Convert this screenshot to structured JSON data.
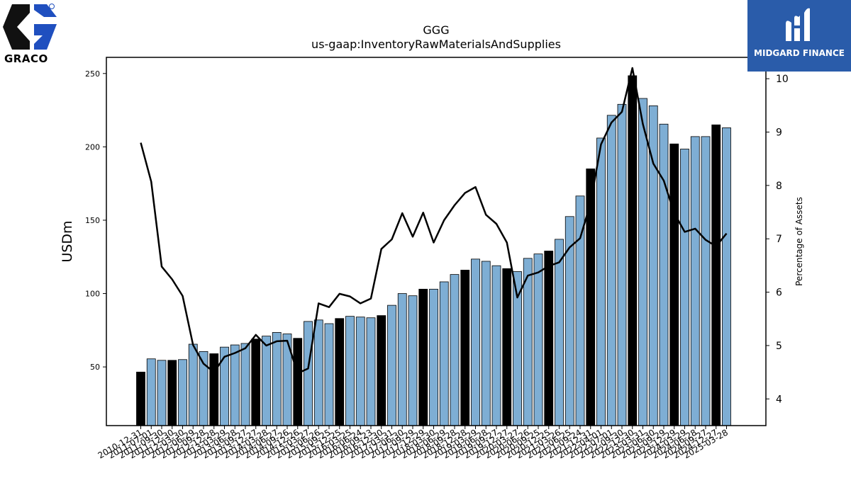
{
  "logos": {
    "left_text": "GRACO",
    "right_text": "MIDGARD FINANCE"
  },
  "chart_data": {
    "type": "bar",
    "title": "GGG",
    "subtitle": "us-gaap:InventoryRawMaterialsAndSupplies",
    "ylabel": "USDm",
    "y2label": "Percentage of Assets",
    "ylim": [
      10,
      261
    ],
    "y2lim": [
      3.5,
      10.4
    ],
    "yticks": [
      50,
      100,
      150,
      200,
      250
    ],
    "y2ticks": [
      4,
      5,
      6,
      7,
      8,
      9,
      10
    ],
    "bar_color": "#7eaed4",
    "highlight_color": "#000000",
    "line_color": "#000000",
    "categories": [
      "2010-12-31",
      "2011-07-01",
      "2011-09-30",
      "2011-12-30",
      "2012-03-30",
      "2012-06-29",
      "2012-09-28",
      "2012-12-28",
      "2013-03-29",
      "2013-06-28",
      "2013-09-27",
      "2013-12-27",
      "2014-03-28",
      "2014-06-27",
      "2014-09-26",
      "2014-12-26",
      "2015-03-27",
      "2015-06-26",
      "2015-09-25",
      "2015-12-25",
      "2016-03-25",
      "2016-06-24",
      "2016-09-23",
      "2016-12-30",
      "2017-03-31",
      "2017-06-30",
      "2017-09-29",
      "2017-12-29",
      "2018-03-30",
      "2018-06-29",
      "2018-09-28",
      "2018-12-28",
      "2019-03-29",
      "2019-06-28",
      "2019-09-27",
      "2019-12-27",
      "2020-03-27",
      "2020-06-26",
      "2020-09-25",
      "2020-12-25",
      "2021-03-26",
      "2021-06-25",
      "2021-09-24",
      "2021-12-31",
      "2022-04-01",
      "2022-07-01",
      "2022-09-30",
      "2022-12-30",
      "2023-03-31",
      "2023-06-30",
      "2023-09-29",
      "2023-12-29",
      "2024-03-29",
      "2024-06-28",
      "2024-09-27",
      "2024-12-27",
      "2025-03-28"
    ],
    "xtick_labels": [
      "2010-12-31",
      "2011-07-01",
      "2011-09-30",
      "2011-12-30",
      "2012-03-30",
      "2012-06-29",
      "2012-09-28",
      "2012-12-28",
      "2013-03-29",
      "2013-06-28",
      "2013-09-27",
      "2013-12-27",
      "2014-03-28",
      "2014-06-27",
      "2014-09-26",
      "2014-12-26",
      "2015-03-27",
      "2015-06-26",
      "2015-09-25",
      "2015-12-25",
      "2016-03-25",
      "2016-06-24",
      "2016-09-23",
      "2016-12-30",
      "2017-03-31",
      "2017-06-30",
      "2017-09-29",
      "2017-12-29",
      "2018-03-30",
      "2018-06-29",
      "2018-09-28",
      "2018-12-28",
      "2019-03-29",
      "2019-06-28",
      "2019-09-27",
      "2019-12-27",
      "2020-03-27",
      "2020-06-26",
      "2020-09-25",
      "2020-12-25",
      "2021-03-26",
      "2021-06-25",
      "2021-09-24",
      "2021-12-31",
      "2022-04-01",
      "2022-07-01",
      "2022-09-30",
      "2022-12-30",
      "2023-03-31",
      "2023-06-30",
      "2023-09-29",
      "2023-12-29",
      "2024-03-29",
      "2024-06-28",
      "2024-09-27",
      "2024-12-27",
      "2025-03-28"
    ],
    "highlight": [
      true,
      false,
      false,
      true,
      false,
      false,
      false,
      true,
      false,
      false,
      false,
      true,
      false,
      false,
      false,
      true,
      false,
      false,
      false,
      true,
      false,
      false,
      false,
      true,
      false,
      false,
      false,
      true,
      false,
      false,
      false,
      true,
      false,
      false,
      false,
      true,
      false,
      false,
      false,
      true,
      false,
      false,
      false,
      true,
      false,
      false,
      false,
      true,
      false,
      false,
      false,
      true,
      false,
      false,
      false,
      true,
      false
    ],
    "series": [
      {
        "name": "USDm",
        "axis": "left",
        "values": [
          46.5,
          55.5,
          54.5,
          54.5,
          55,
          65.5,
          60.5,
          59,
          63.5,
          65,
          66,
          69,
          71,
          73.5,
          72.5,
          69.5,
          81,
          82,
          79.5,
          83,
          84.5,
          84,
          83.5,
          85,
          92,
          100,
          98.5,
          103,
          103,
          108,
          113,
          116,
          123.5,
          122,
          119,
          117,
          115,
          124,
          127,
          129,
          137,
          152.5,
          166.5,
          185,
          206,
          221.5,
          229,
          248.5,
          233,
          228,
          215.5,
          202,
          198.5,
          207,
          207,
          215,
          213
        ]
      },
      {
        "name": "Percentage of Assets",
        "axis": "right",
        "type": "line",
        "values": [
          8.8,
          8.07,
          6.48,
          6.24,
          5.93,
          5.01,
          4.66,
          4.5,
          4.79,
          4.86,
          4.95,
          5.2,
          5.0,
          5.08,
          5.09,
          4.48,
          4.57,
          5.79,
          5.72,
          5.97,
          5.92,
          5.79,
          5.88,
          6.81,
          6.99,
          7.48,
          7.04,
          7.49,
          6.93,
          7.35,
          7.63,
          7.86,
          7.97,
          7.45,
          7.28,
          6.93,
          5.9,
          6.31,
          6.37,
          6.49,
          6.56,
          6.84,
          7.01,
          7.67,
          8.77,
          9.18,
          9.38,
          10.2,
          9.15,
          8.41,
          8.09,
          7.48,
          7.13,
          7.19,
          6.98,
          6.86,
          7.1
        ]
      }
    ]
  }
}
